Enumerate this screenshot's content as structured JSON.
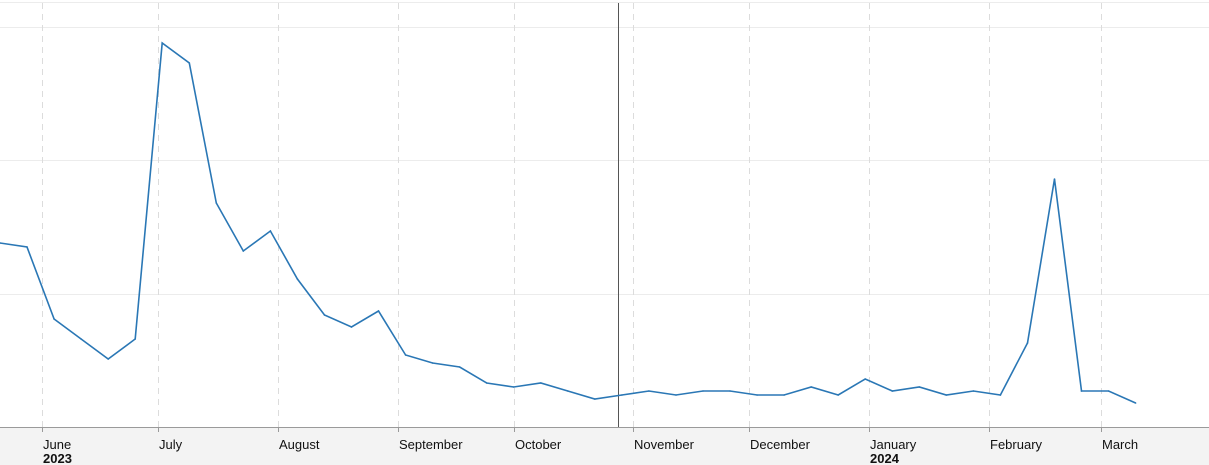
{
  "chart_data": {
    "type": "line",
    "title": "",
    "xlabel": "",
    "ylabel": "",
    "x_axis": {
      "type": "time",
      "range": [
        "2023-05-21",
        "2024-03-29"
      ],
      "month_ticks": [
        {
          "date": "2023-06-01",
          "label": "June",
          "year": "2023"
        },
        {
          "date": "2023-07-01",
          "label": "July",
          "year": ""
        },
        {
          "date": "2023-08-01",
          "label": "August",
          "year": ""
        },
        {
          "date": "2023-09-01",
          "label": "September",
          "year": ""
        },
        {
          "date": "2023-10-01",
          "label": "October",
          "year": ""
        },
        {
          "date": "2023-11-01",
          "label": "November",
          "year": ""
        },
        {
          "date": "2023-12-01",
          "label": "December",
          "year": ""
        },
        {
          "date": "2024-01-01",
          "label": "January",
          "year": "2024"
        },
        {
          "date": "2024-02-01",
          "label": "February",
          "year": ""
        },
        {
          "date": "2024-03-01",
          "label": "March",
          "year": ""
        }
      ]
    },
    "y_axis": {
      "range": [
        0,
        100
      ],
      "gridlines": [
        0,
        33.3,
        66.7,
        100
      ],
      "tick_labels_shown": false
    },
    "grid": true,
    "legend": "none",
    "colors": {
      "line": "#2a77b5",
      "grid": "#ececec",
      "month_grid": "#dcdcdc",
      "axis_band": "#f3f3f3",
      "cursor": "#555555"
    },
    "cursor_date": "2023-10-28",
    "series": [
      {
        "x": [
          "2023-05-21",
          "2023-05-28",
          "2023-06-04",
          "2023-06-11",
          "2023-06-18",
          "2023-06-25",
          "2023-07-02",
          "2023-07-09",
          "2023-07-16",
          "2023-07-23",
          "2023-07-30",
          "2023-08-06",
          "2023-08-13",
          "2023-08-20",
          "2023-08-27",
          "2023-09-03",
          "2023-09-10",
          "2023-09-17",
          "2023-09-24",
          "2023-10-01",
          "2023-10-08",
          "2023-10-15",
          "2023-10-22",
          "2023-10-29",
          "2023-11-05",
          "2023-11-12",
          "2023-11-19",
          "2023-11-26",
          "2023-12-03",
          "2023-12-10",
          "2023-12-17",
          "2023-12-24",
          "2023-12-31",
          "2024-01-07",
          "2024-01-14",
          "2024-01-21",
          "2024-01-28",
          "2024-02-04",
          "2024-02-11",
          "2024-02-18",
          "2024-02-25",
          "2024-03-03",
          "2024-03-10"
        ],
        "values": [
          46,
          45,
          27,
          22,
          17,
          22,
          96,
          91,
          56,
          44,
          49,
          37,
          28,
          25,
          29,
          18,
          16,
          15,
          11,
          10,
          11,
          9,
          7,
          8,
          9,
          8,
          9,
          9,
          8,
          8,
          10,
          8,
          12,
          9,
          10,
          8,
          9,
          8,
          21,
          62,
          9,
          9,
          6
        ]
      }
    ]
  }
}
